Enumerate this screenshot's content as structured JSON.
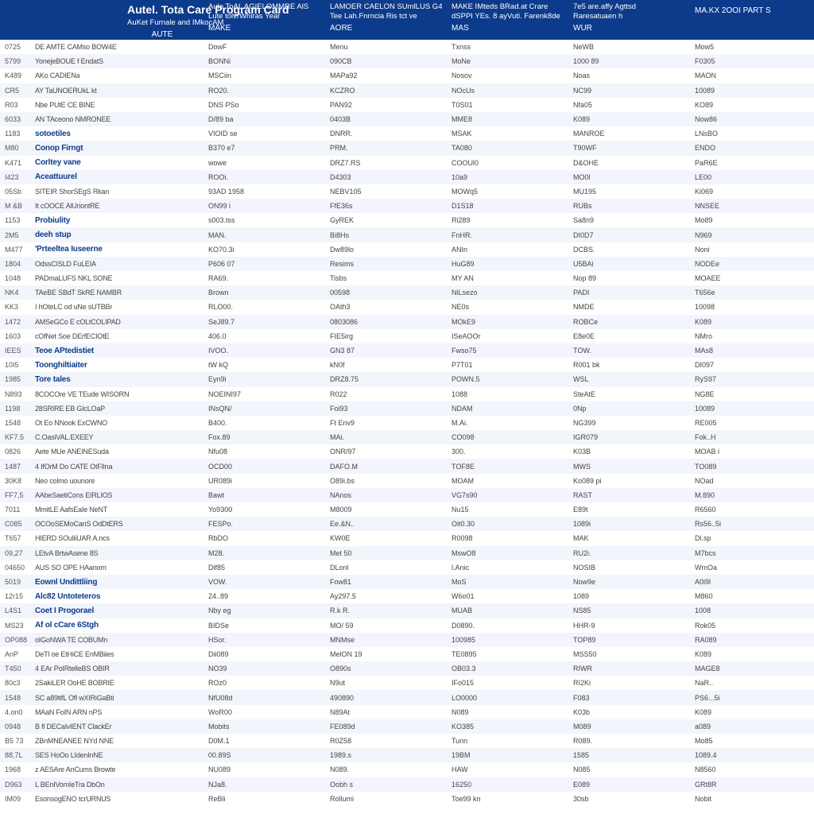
{
  "colors": {
    "header_bg": "#0d3b8c",
    "header_text": "#ffffff",
    "row_alt_bg": "#f2f5fb",
    "highlight_text": "#0d3b8c",
    "cell_text": "#444444"
  },
  "header": {
    "title_main": "Autel. Tota Care Program Card",
    "title_sub": "AuKet Furnale and IMkocAM",
    "title_col_label": "AUTE",
    "cols": [
      {
        "line1": "Aule ToAL AGIELOMMRE AlS",
        "line2": "Lute tolvrWhiras Year",
        "label": "MAKE"
      },
      {
        "line1": "LAMOER CAELON SUmlLUS G4",
        "line2": "Tee Lah.Fnrncia Ris tct ve",
        "label": "AORE"
      },
      {
        "line1": "MAKE IMteds BRad.at Crare",
        "line2": "dSPPI YEs. 8 ayVuti. Farenk8de",
        "label": "MAS"
      },
      {
        "line1": "7e5 are.affy Agttsd",
        "line2": "Raresatuaen h",
        "label": "WUR"
      },
      {
        "line1": "",
        "line2": "",
        "label": "MA.KX 2OOI PART S"
      }
    ]
  },
  "rows": [
    {
      "id": "0725",
      "desc": "DE AMTE CAMso BOW4E",
      "hl": false,
      "c": [
        "DowF",
        "Menu",
        "Txnss",
        "NeWB",
        "Mow5"
      ]
    },
    {
      "id": "5799",
      "desc": "YonejeBOUE f EndatS",
      "hl": false,
      "c": [
        "BONNi",
        "090CB",
        "MoNe",
        "1000 89",
        "F0305"
      ]
    },
    {
      "id": "K489",
      "desc": "AKo CADIENa",
      "hl": false,
      "c": [
        "MSCiin",
        "MAPa92",
        "Nosov",
        "Noas",
        "MAON"
      ]
    },
    {
      "id": "CR5",
      "desc": "AY TaUNOERUkL kt",
      "hl": false,
      "c": [
        "RO20.",
        "KCZRO",
        "NOcUs",
        "NC99",
        "10089"
      ]
    },
    {
      "id": "R03",
      "desc": "Nbe PUtE CE BINE",
      "hl": false,
      "c": [
        "DNS PSo",
        "PAN92",
        "T0S01",
        "Nfa05",
        "KO89"
      ]
    },
    {
      "id": "6033",
      "desc": "AN TAceono NMRONEE",
      "hl": false,
      "c": [
        "D/89 ba",
        "0403B",
        "MME8",
        "K089",
        "Now86"
      ]
    },
    {
      "id": "1183",
      "desc": "sotoetiles",
      "hl": true,
      "c": [
        "VIOID se",
        "DNRR.",
        "MSAK",
        "MANROE",
        "LNsBO"
      ]
    },
    {
      "id": "M80",
      "desc": "Conop Firngt",
      "hl": true,
      "c": [
        "B370 e7",
        "PRM.",
        "TA080",
        "T90WF",
        "ENDO"
      ]
    },
    {
      "id": "K471",
      "desc": "Corltey vane",
      "hl": true,
      "c": [
        "wowe",
        "DRZ7.RS",
        "COOUl0",
        "D&OHE",
        "PaR6E"
      ]
    },
    {
      "id": "I423",
      "desc": "Aceattuurel",
      "hl": true,
      "c": [
        "ROOi.",
        "D4303",
        "10a9",
        "MO0l",
        "LE00"
      ]
    },
    {
      "id": "05Sb",
      "desc": "SITEIR ShorSEgS Rkan",
      "hl": false,
      "c": [
        "93AD 1958",
        "NEBV105",
        "MOWq5",
        "MU195",
        "Ki069"
      ]
    },
    {
      "id": "M &B",
      "desc": "It cOOCE AlUriontRE",
      "hl": false,
      "c": [
        "ON99 i",
        "FfE36s",
        "D1S18",
        "RUBs",
        "NNSEE"
      ]
    },
    {
      "id": "1153",
      "desc": "Probiulity",
      "hl": true,
      "c": [
        "s003.tss",
        "GyREK",
        "Ri289",
        "Sa8n9",
        "Mo89"
      ]
    },
    {
      "id": "2M5",
      "desc": "deeh stup",
      "hl": true,
      "c": [
        "MAN.",
        "Bi8Hs",
        "FnHR.",
        "DI0D7",
        "N969"
      ]
    },
    {
      "id": "M477",
      "desc": "'Prteeltea Iuseerne",
      "hl": true,
      "c": [
        "KO70.3i",
        "Dw89lo",
        "ANIn",
        "DCBS.",
        "Noni"
      ]
    },
    {
      "id": "1804",
      "desc": "OdssCISLD FuLEIA",
      "hl": false,
      "c": [
        "P606 07",
        "Resims",
        "HuG89",
        "U5BAi",
        "NODEe"
      ]
    },
    {
      "id": "1048",
      "desc": "PADmaLUFS NKL SONE",
      "hl": false,
      "c": [
        "RA69.",
        "Tisbs",
        "MY AN",
        "Nop 89",
        "MOAEE"
      ]
    },
    {
      "id": "NK4",
      "desc": "TAeBE SBdT SkRE NAMBR",
      "hl": false,
      "c": [
        "Brown",
        "00598",
        "NiLsezo",
        "PADI",
        "T656e"
      ]
    },
    {
      "id": "KK3",
      "desc": "I hOteLC od uNe sUTBBr",
      "hl": false,
      "c": [
        "RLO00.",
        "OAth3",
        "NE0s",
        "NMDE",
        "10098"
      ]
    },
    {
      "id": "1472",
      "desc": "AMSeGCo E cOLtCOLIPAD",
      "hl": false,
      "c": [
        "SeJ89.7",
        "0803086",
        "MOkE9",
        "ROBCe",
        "K089"
      ]
    },
    {
      "id": "1603",
      "desc": "cOfNet Soe DErfECIOtE",
      "hl": false,
      "c": [
        "406.0",
        "FIE5irg",
        "ISeAOOr",
        "E8e0E",
        "NMro"
      ]
    },
    {
      "id": "IEES",
      "desc": "Teoe APtedistiet",
      "hl": true,
      "c": [
        "IVOO.",
        "GN3 87",
        "Fwso75",
        "TOW.",
        "MAs8"
      ]
    },
    {
      "id": "10I5",
      "desc": "Toonghiltiaiter",
      "hl": true,
      "c": [
        "tW kQ",
        "kN0f",
        "P7T01",
        "R001 bk",
        "DI097"
      ]
    },
    {
      "id": "1985",
      "desc": "Tore tales",
      "hl": true,
      "c": [
        "Eyn9i",
        "DRZ8.75",
        "POWN.5",
        "WSL",
        "RyS97"
      ]
    },
    {
      "id": "N893",
      "desc": "8COCOre VE TEude WISORN",
      "hl": false,
      "c": [
        "NOEINI97",
        "R022",
        "1088",
        "SteAtE",
        "NG8E"
      ]
    },
    {
      "id": "1198",
      "desc": "28SRIRE EB GIcLOaP",
      "hl": false,
      "c": [
        "INsQN/",
        "Foi93",
        "NDAM",
        "0Np",
        "10089"
      ]
    },
    {
      "id": "1548",
      "desc": "Ot Eo NNook ExCWNO",
      "hl": false,
      "c": [
        "B400.",
        "Ft Env9",
        "M.Ai.",
        "NG399",
        "RE005"
      ]
    },
    {
      "id": "KF7.5",
      "desc": "C.OasiVAL.EXEEY",
      "hl": false,
      "c": [
        "Fox.89",
        "MAi.",
        "CO098",
        "IGR079",
        "Fok..H"
      ]
    },
    {
      "id": "0826",
      "desc": "Aete MUe ANEINESuda",
      "hl": false,
      "c": [
        "Nfu08",
        "ONR/97",
        "300.",
        "K03B",
        "MOAB i"
      ]
    },
    {
      "id": "1487",
      "desc": "4 IfOrM Do CATE OtFlIna",
      "hl": false,
      "c": [
        "OCD00",
        "DAFO.M",
        "TOF8E",
        "MWS",
        "TO089"
      ]
    },
    {
      "id": "30K8",
      "desc": "Neo colmo uounore",
      "hl": false,
      "c": [
        "UR089i",
        "O89i.bs",
        "MOAM",
        "Ko089 pi",
        "NOad"
      ]
    },
    {
      "id": "FF7,5",
      "desc": "AAbeSaetiCons EIRLIOS",
      "hl": false,
      "c": [
        "Bawt",
        "NAnos",
        "VG7s90",
        "RAST",
        "M.890"
      ]
    },
    {
      "id": "7011",
      "desc": "MmitLE AafsEaIe NeNT",
      "hl": false,
      "c": [
        "Yo9300",
        "M8009",
        "Nu15",
        "E89t",
        "R6560"
      ]
    },
    {
      "id": "C085",
      "desc": "OCOoSEMoCanS OdDtERS",
      "hl": false,
      "c": [
        "FESPo.",
        "Ee.&N..",
        "Oit0.30",
        "1089i",
        "Rs56..5i"
      ]
    },
    {
      "id": "T657",
      "desc": "HIERD SOuliiUAR A.ncs",
      "hl": false,
      "c": [
        "RbDO",
        "KW0E",
        "R0098",
        "MAK",
        "Dl.sp"
      ]
    },
    {
      "id": "09,27",
      "desc": "LEtvA BrtwAsene 8S",
      "hl": false,
      "c": [
        "M28.",
        "Met 50",
        "MswO8",
        "RU2i.",
        "M7bcs"
      ]
    },
    {
      "id": "04650",
      "desc": "AUS SO OPE HAanom",
      "hl": false,
      "c": [
        "Dif85",
        "DLonl",
        "l.Anic",
        "NOSIB",
        "WmOa"
      ]
    },
    {
      "id": "5019",
      "desc": "Eownl Undittliing",
      "hl": true,
      "c": [
        "VOW.",
        "Fow81",
        "MoS",
        "Now9e",
        "A0i9l"
      ]
    },
    {
      "id": "12r15",
      "desc": "Alc82 Untoteteros",
      "hl": true,
      "c": [
        "24..89",
        "Ay297.5",
        "W6o01",
        "1089",
        "M860"
      ]
    },
    {
      "id": "L4S1",
      "desc": "Coet I Progorael",
      "hl": true,
      "c": [
        "Nby eg",
        "R.k R.",
        "MUAB",
        "NS85",
        "1008"
      ]
    },
    {
      "id": "MS23",
      "desc": "Af ol cCare 6Stgh",
      "hl": true,
      "c": [
        "BIDSe",
        "MO/ 59",
        "D0890.",
        "HHR-9",
        "Rok05"
      ]
    },
    {
      "id": "OP088",
      "desc": "oIGoNWA TE COBUMn",
      "hl": false,
      "c": [
        "HSor.",
        "MNMse",
        "100985",
        "TOP89",
        "RA089"
      ]
    },
    {
      "id": "AnP",
      "desc": "DeTl oe EtHiCE EnMBiies",
      "hl": false,
      "c": [
        "Dii089",
        "MelON 19",
        "TE0895",
        "MSS50",
        "K089"
      ]
    },
    {
      "id": "T450",
      "desc": "4 EAr PoIRtelleBS OBIR",
      "hl": false,
      "c": [
        "NO39",
        "O890s",
        "OB03.3",
        "RIWR",
        "MAGE8"
      ]
    },
    {
      "id": "80c3",
      "desc": "2SakiLER OoHE BOBRIE",
      "hl": false,
      "c": [
        "ROz0",
        "N9ut",
        "IFo015",
        "RI2Ki",
        "NaR.."
      ]
    },
    {
      "id": "1548",
      "desc": "SC a89tifL Ofl wXIRiGaBti",
      "hl": false,
      "c": [
        "NfU08d",
        "490890",
        "LO0000",
        "F083",
        "PS6...5i"
      ]
    },
    {
      "id": "4.on0",
      "desc": "MAaN FoIN ARN nPS",
      "hl": false,
      "c": [
        "WoR00",
        "N89At",
        "N089",
        "K03b",
        "K089"
      ]
    },
    {
      "id": "0948",
      "desc": "B fl DECaIvIENT ClackEr",
      "hl": false,
      "c": [
        "Mobits",
        "FE089d",
        "KO385",
        "M089",
        "a089"
      ]
    },
    {
      "id": "B5 73",
      "desc": "ZBnMNEANEE NYd NNE",
      "hl": false,
      "c": [
        "D0M.1",
        "R0Z58",
        "Tunn",
        "R089.",
        "Mo85"
      ]
    },
    {
      "id": "88,7L",
      "desc": "SES HoOo LIdenInNE",
      "hl": false,
      "c": [
        "00.89S",
        "1989.s",
        "19BM",
        "1585",
        "1089.4"
      ]
    },
    {
      "id": "1968",
      "desc": "z AESAre AnCums Browte",
      "hl": false,
      "c": [
        "NU089",
        "N089.",
        "HAW",
        "N085",
        "N8560"
      ]
    },
    {
      "id": "D963",
      "desc": "L BEnIVomIeTra DbOn",
      "hl": false,
      "c": [
        "NJa8.",
        "Oobh s",
        "16250",
        "E089",
        "GRt8R"
      ]
    },
    {
      "id": "IM09",
      "desc": "EsonsogENO tcrURNUS",
      "hl": false,
      "c": [
        "ReBli",
        "Rollumi",
        "Toe99 kn",
        "30sb",
        "Nobit"
      ]
    }
  ]
}
